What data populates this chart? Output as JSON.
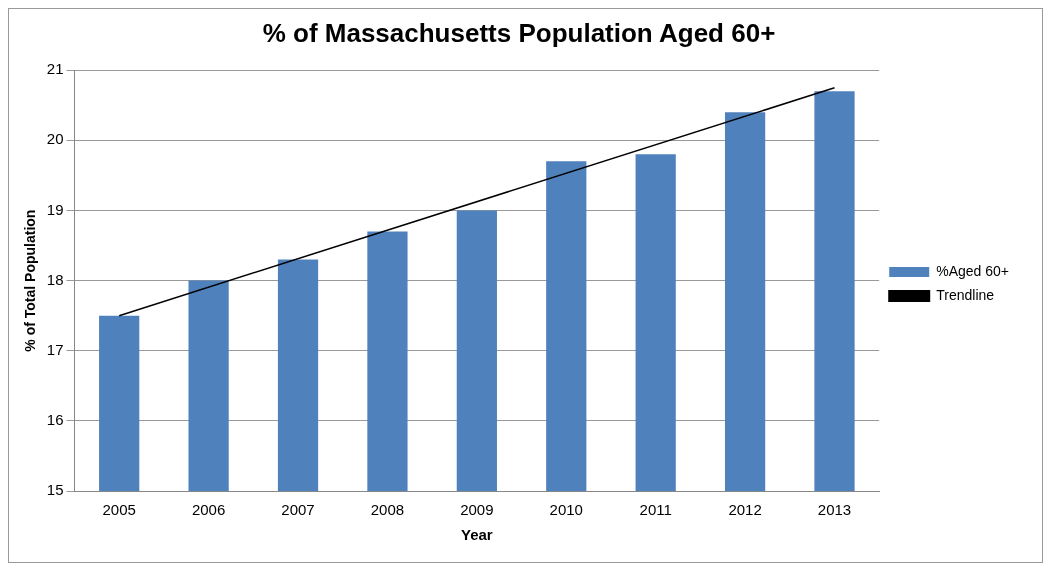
{
  "chart_data": {
    "type": "bar",
    "title": "% of Massachusetts Population Aged 60+",
    "xlabel": "Year",
    "ylabel": "% of Total Population",
    "categories": [
      "2005",
      "2006",
      "2007",
      "2008",
      "2009",
      "2010",
      "2011",
      "2012",
      "2013"
    ],
    "series": [
      {
        "name": "%Aged 60+",
        "color": "#4f81bd",
        "values": [
          17.5,
          18.0,
          18.3,
          18.7,
          19.0,
          19.7,
          19.8,
          20.4,
          20.7
        ]
      },
      {
        "name": "Trendline",
        "type": "line",
        "color": "#000000",
        "values": [
          17.5,
          null,
          null,
          null,
          null,
          null,
          null,
          null,
          20.75
        ]
      }
    ],
    "ylim": [
      15,
      21
    ],
    "yticks": [
      15,
      16,
      17,
      18,
      19,
      20,
      21
    ],
    "grid": "y",
    "legend": "right",
    "marker": "none",
    "line_style": "solid"
  }
}
